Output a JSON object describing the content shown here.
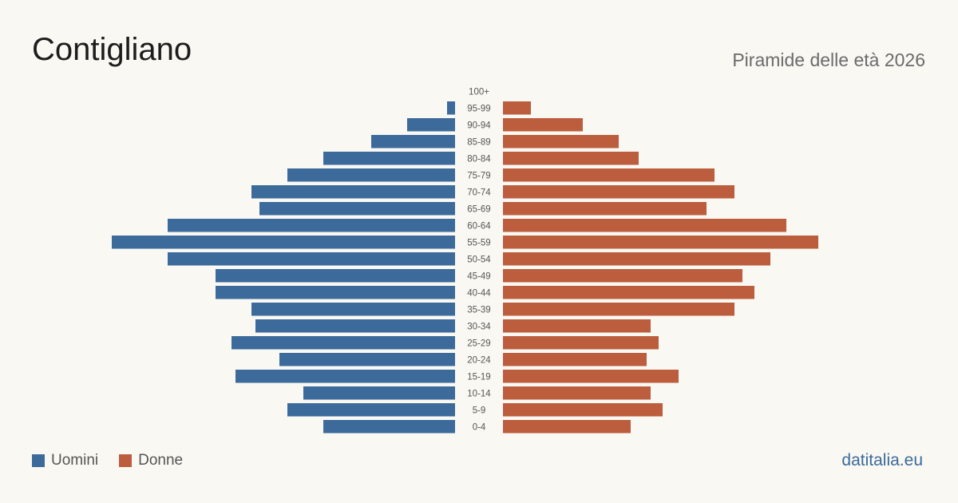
{
  "header": {
    "title": "Contigliano",
    "subtitle": "Piramide delle età 2026"
  },
  "legend": {
    "male_label": "Uomini",
    "female_label": "Donne"
  },
  "brand": "datitalia.eu",
  "colors": {
    "male": "#3b6a9b",
    "female": "#bc5e3d",
    "label": "#555555"
  },
  "chart_data": {
    "type": "bar",
    "orientation": "horizontal-pyramid",
    "title": "Contigliano",
    "subtitle": "Piramide delle età 2026",
    "categories": [
      "100+",
      "95-99",
      "90-94",
      "85-89",
      "80-84",
      "75-79",
      "70-74",
      "65-69",
      "60-64",
      "55-59",
      "50-54",
      "45-49",
      "40-44",
      "35-39",
      "30-34",
      "25-29",
      "20-24",
      "15-19",
      "10-14",
      "5-9",
      "0-4"
    ],
    "series": [
      {
        "name": "Uomini",
        "values": [
          0,
          2,
          12,
          21,
          33,
          42,
          51,
          49,
          72,
          86,
          72,
          60,
          60,
          51,
          50,
          56,
          44,
          55,
          38,
          42,
          33
        ]
      },
      {
        "name": "Donne",
        "values": [
          0,
          7,
          20,
          29,
          34,
          53,
          58,
          51,
          71,
          79,
          67,
          60,
          63,
          58,
          37,
          39,
          36,
          44,
          37,
          40,
          32
        ]
      }
    ],
    "xlim": [
      0,
      86
    ],
    "grid": false,
    "legend_position": "bottom-left"
  }
}
